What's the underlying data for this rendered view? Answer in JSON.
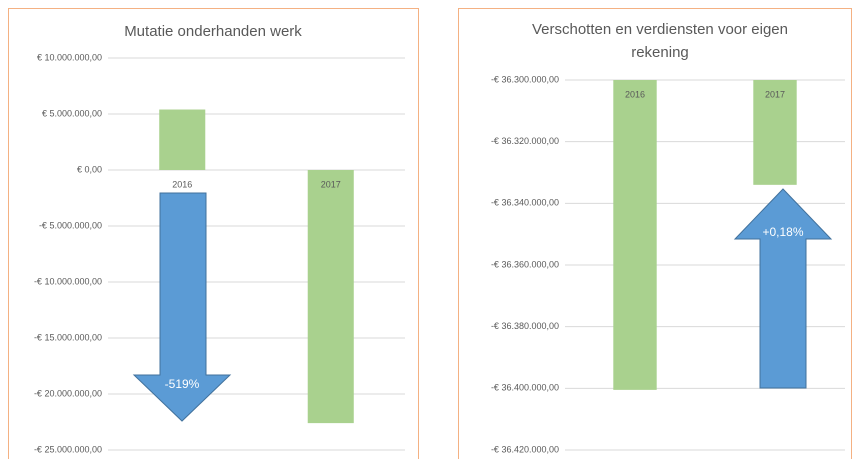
{
  "chart_data": [
    {
      "type": "bar",
      "title": "Mutatie onderhanden werk",
      "categories": [
        "2016",
        "2017"
      ],
      "values": [
        5400000,
        -22600000
      ],
      "color": "#a9d18e",
      "ylim": [
        -25000000,
        10000000
      ],
      "yticks": [
        {
          "value": -25000000,
          "label": "-€ 25.000.000,00"
        },
        {
          "value": -20000000,
          "label": "-€ 20.000.000,00"
        },
        {
          "value": -15000000,
          "label": "-€ 15.000.000,00"
        },
        {
          "value": -10000000,
          "label": "-€ 10.000.000,00"
        },
        {
          "value": -5000000,
          "label": "-€ 5.000.000,00"
        },
        {
          "value": 0,
          "label": "€ 0,00"
        },
        {
          "value": 5000000,
          "label": "€ 5.000.000,00"
        },
        {
          "value": 10000000,
          "label": "€ 10.000.000,00"
        }
      ],
      "grid": true,
      "annotation": "-519%"
    },
    {
      "type": "bar",
      "title": "Verschotten en verdiensten voor eigen rekening",
      "categories": [
        "2016",
        "2017"
      ],
      "values": [
        -36400500,
        -36334000
      ],
      "color": "#a9d18e",
      "ylim": [
        -36420000,
        -36300000
      ],
      "yticks": [
        {
          "value": -36420000,
          "label": "-€ 36.420.000,00"
        },
        {
          "value": -36400000,
          "label": "-€ 36.400.000,00"
        },
        {
          "value": -36380000,
          "label": "-€ 36.380.000,00"
        },
        {
          "value": -36360000,
          "label": "-€ 36.360.000,00"
        },
        {
          "value": -36340000,
          "label": "-€ 36.340.000,00"
        },
        {
          "value": -36320000,
          "label": "-€ 36.320.000,00"
        },
        {
          "value": -36300000,
          "label": "-€ 36.300.000,00"
        }
      ],
      "grid": true,
      "annotation": "+0,18%"
    }
  ]
}
